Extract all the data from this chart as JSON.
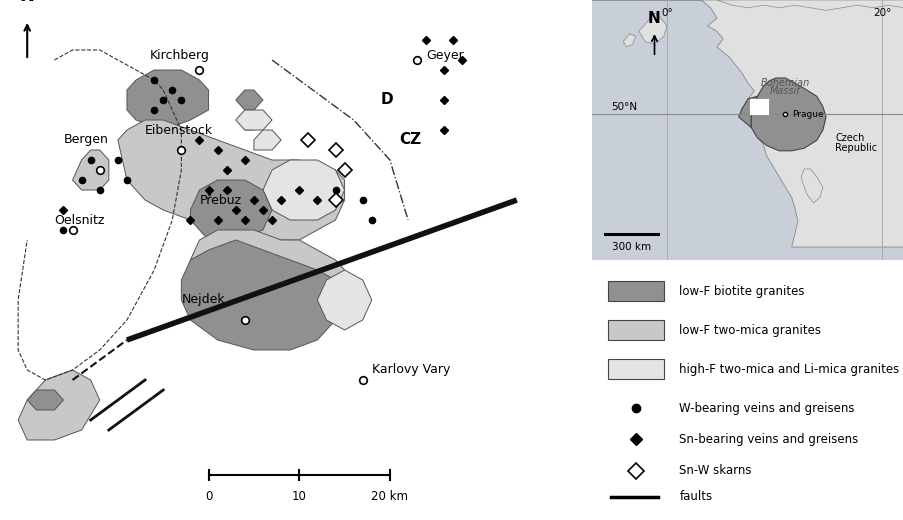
{
  "fig_width": 9.04,
  "fig_height": 5.2,
  "bg_color": "#ffffff",
  "c_dark": "#909090",
  "c_med": "#c8c8c8",
  "c_lite": "#e4e4e4",
  "c_sea": "#c8cfd8",
  "c_land": "#d8d8d8",
  "legend_labels": [
    "low-F biotite granites",
    "low-F two-mica granites",
    "high-F two-mica and Li-mica granites",
    "W-bearing veins and greisens",
    "Sn-bearing veins and greisens",
    "Sn-W skarns",
    "faults"
  ]
}
